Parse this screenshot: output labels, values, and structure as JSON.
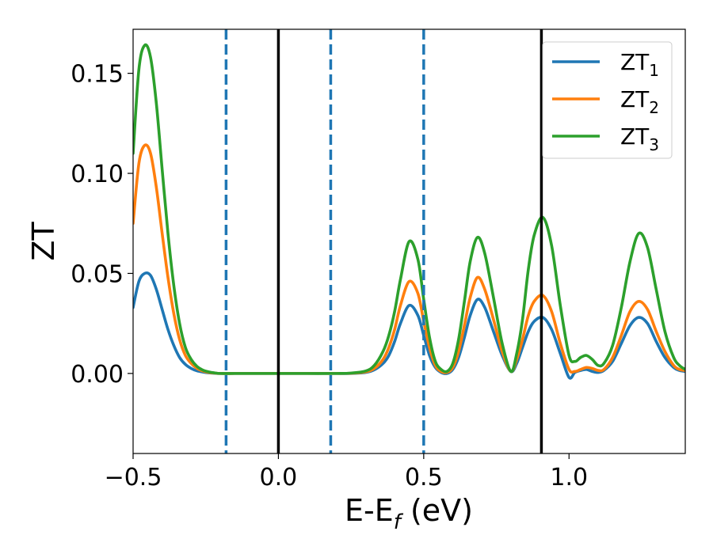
{
  "chart_data": {
    "type": "line",
    "xlabel": {
      "main": "E-E",
      "sub": "f",
      "unit": " (eV)"
    },
    "ylabel": "ZT",
    "xlim": [
      -0.5,
      1.4
    ],
    "ylim": [
      -0.04,
      0.172
    ],
    "xticks": [
      {
        "value": -0.5,
        "label": "−0.5"
      },
      {
        "value": 0.0,
        "label": "0.0"
      },
      {
        "value": 0.5,
        "label": "0.5"
      },
      {
        "value": 1.0,
        "label": "1.0"
      }
    ],
    "yticks": [
      {
        "value": 0.0,
        "label": "0.00"
      },
      {
        "value": 0.05,
        "label": "0.05"
      },
      {
        "value": 0.1,
        "label": "0.10"
      },
      {
        "value": 0.15,
        "label": "0.15"
      }
    ],
    "legend": "top-right",
    "grid": false,
    "vlines": [
      {
        "x": -0.18,
        "style": "dashed",
        "color": "#1f77b4"
      },
      {
        "x": 0.0,
        "style": "solid",
        "color": "#000000"
      },
      {
        "x": 0.18,
        "style": "dashed",
        "color": "#1f77b4"
      },
      {
        "x": 0.5,
        "style": "dashed",
        "color": "#1f77b4"
      },
      {
        "x": 0.905,
        "style": "solid",
        "color": "#000000"
      }
    ],
    "series": [
      {
        "name": "ZT",
        "sub": "1",
        "color": "#1f77b4",
        "x": [
          -0.5,
          -0.48,
          -0.46,
          -0.44,
          -0.42,
          -0.4,
          -0.38,
          -0.36,
          -0.34,
          -0.32,
          -0.3,
          -0.28,
          -0.26,
          -0.24,
          -0.22,
          -0.2,
          -0.15,
          -0.1,
          0.0,
          0.1,
          0.2,
          0.25,
          0.3,
          0.33,
          0.36,
          0.38,
          0.4,
          0.42,
          0.45,
          0.48,
          0.5,
          0.52,
          0.54,
          0.56,
          0.58,
          0.6,
          0.62,
          0.64,
          0.66,
          0.685,
          0.71,
          0.74,
          0.77,
          0.8,
          0.82,
          0.84,
          0.86,
          0.88,
          0.91,
          0.94,
          0.97,
          1.0,
          1.02,
          1.04,
          1.06,
          1.08,
          1.1,
          1.12,
          1.15,
          1.18,
          1.21,
          1.24,
          1.27,
          1.3,
          1.33,
          1.36,
          1.38,
          1.4
        ],
        "y": [
          0.033,
          0.046,
          0.05,
          0.049,
          0.042,
          0.032,
          0.022,
          0.014,
          0.008,
          0.0045,
          0.0025,
          0.0013,
          0.0007,
          0.0003,
          0.0001,
          0.0,
          0.0,
          0.0,
          0.0,
          0.0,
          0.0,
          0.0,
          0.0005,
          0.0018,
          0.005,
          0.009,
          0.016,
          0.025,
          0.034,
          0.029,
          0.019,
          0.009,
          0.003,
          0.0005,
          0.0,
          0.002,
          0.008,
          0.018,
          0.029,
          0.037,
          0.033,
          0.021,
          0.009,
          0.001,
          0.005,
          0.013,
          0.021,
          0.026,
          0.028,
          0.022,
          0.01,
          -0.002,
          0.0005,
          0.0015,
          0.002,
          0.001,
          0.0005,
          0.0015,
          0.006,
          0.015,
          0.024,
          0.028,
          0.025,
          0.016,
          0.008,
          0.003,
          0.0015,
          0.001
        ]
      },
      {
        "name": "ZT",
        "sub": "2",
        "color": "#ff7f0e",
        "x": [
          -0.5,
          -0.48,
          -0.46,
          -0.44,
          -0.42,
          -0.4,
          -0.38,
          -0.36,
          -0.34,
          -0.32,
          -0.3,
          -0.28,
          -0.26,
          -0.24,
          -0.22,
          -0.2,
          -0.15,
          -0.1,
          0.0,
          0.1,
          0.2,
          0.25,
          0.3,
          0.33,
          0.36,
          0.38,
          0.4,
          0.42,
          0.45,
          0.48,
          0.5,
          0.52,
          0.54,
          0.56,
          0.58,
          0.6,
          0.62,
          0.64,
          0.66,
          0.685,
          0.71,
          0.74,
          0.77,
          0.8,
          0.82,
          0.84,
          0.86,
          0.88,
          0.91,
          0.94,
          0.97,
          1.0,
          1.02,
          1.04,
          1.06,
          1.08,
          1.1,
          1.12,
          1.15,
          1.18,
          1.21,
          1.24,
          1.27,
          1.3,
          1.33,
          1.36,
          1.38,
          1.4
        ],
        "y": [
          0.075,
          0.105,
          0.114,
          0.11,
          0.093,
          0.07,
          0.048,
          0.03,
          0.017,
          0.009,
          0.005,
          0.0025,
          0.0012,
          0.0005,
          0.0002,
          0.0,
          0.0,
          0.0,
          0.0,
          0.0,
          0.0,
          0.0001,
          0.0008,
          0.0025,
          0.007,
          0.013,
          0.022,
          0.034,
          0.046,
          0.04,
          0.026,
          0.013,
          0.004,
          0.001,
          0.0005,
          0.003,
          0.011,
          0.024,
          0.038,
          0.048,
          0.042,
          0.027,
          0.011,
          0.001,
          0.007,
          0.017,
          0.029,
          0.036,
          0.039,
          0.031,
          0.015,
          0.002,
          0.001,
          0.002,
          0.003,
          0.0025,
          0.0015,
          0.002,
          0.008,
          0.019,
          0.031,
          0.036,
          0.032,
          0.021,
          0.011,
          0.004,
          0.002,
          0.0015
        ]
      },
      {
        "name": "ZT",
        "sub": "3",
        "color": "#2ca02c",
        "x": [
          -0.5,
          -0.48,
          -0.46,
          -0.44,
          -0.42,
          -0.4,
          -0.38,
          -0.36,
          -0.34,
          -0.32,
          -0.3,
          -0.28,
          -0.26,
          -0.24,
          -0.22,
          -0.2,
          -0.15,
          -0.1,
          0.0,
          0.1,
          0.2,
          0.25,
          0.3,
          0.33,
          0.36,
          0.38,
          0.4,
          0.42,
          0.45,
          0.48,
          0.5,
          0.52,
          0.54,
          0.56,
          0.58,
          0.6,
          0.62,
          0.64,
          0.66,
          0.685,
          0.71,
          0.74,
          0.77,
          0.8,
          0.82,
          0.84,
          0.86,
          0.88,
          0.91,
          0.94,
          0.97,
          1.0,
          1.02,
          1.04,
          1.06,
          1.08,
          1.1,
          1.12,
          1.15,
          1.18,
          1.21,
          1.24,
          1.27,
          1.3,
          1.33,
          1.36,
          1.38,
          1.4
        ],
        "y": [
          0.11,
          0.152,
          0.164,
          0.158,
          0.135,
          0.102,
          0.07,
          0.044,
          0.025,
          0.013,
          0.007,
          0.0035,
          0.0017,
          0.0008,
          0.0003,
          0.0,
          0.0,
          0.0,
          0.0,
          0.0,
          0.0,
          0.0002,
          0.0012,
          0.004,
          0.011,
          0.019,
          0.031,
          0.047,
          0.066,
          0.057,
          0.037,
          0.018,
          0.006,
          0.002,
          0.001,
          0.005,
          0.017,
          0.036,
          0.056,
          0.068,
          0.06,
          0.038,
          0.015,
          0.001,
          0.01,
          0.027,
          0.052,
          0.069,
          0.078,
          0.064,
          0.034,
          0.009,
          0.006,
          0.008,
          0.009,
          0.007,
          0.004,
          0.005,
          0.014,
          0.033,
          0.056,
          0.07,
          0.063,
          0.042,
          0.021,
          0.008,
          0.004,
          0.002
        ]
      }
    ]
  }
}
